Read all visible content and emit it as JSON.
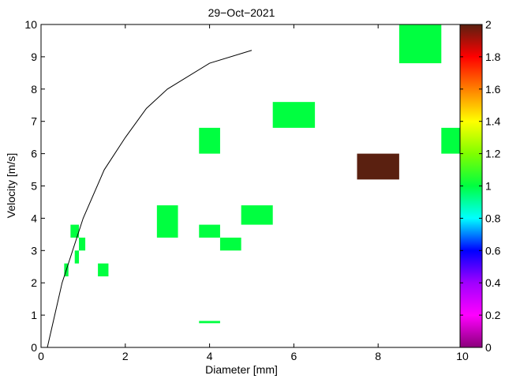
{
  "chart_data": {
    "type": "heatmap",
    "title": "29−Oct−2021",
    "xlabel": "Diameter [mm]",
    "ylabel": "Velocity [m/s]",
    "xlim": [
      0,
      10
    ],
    "ylim": [
      0,
      10
    ],
    "xticks": [
      "0",
      "2",
      "4",
      "6",
      "8",
      "10"
    ],
    "yticks": [
      "0",
      "1",
      "2",
      "3",
      "4",
      "5",
      "6",
      "7",
      "8",
      "9",
      "10"
    ],
    "grid": false,
    "colorbar": {
      "range": [
        0,
        2
      ],
      "ticks": [
        "0",
        "0.2",
        "0.4",
        "0.6",
        "0.8",
        "1",
        "1.2",
        "1.4",
        "1.6",
        "1.8",
        "2"
      ]
    },
    "cells": [
      {
        "x0": 0.55,
        "x1": 0.65,
        "y0": 2.2,
        "y1": 2.6,
        "value": 1
      },
      {
        "x0": 0.7,
        "x1": 0.9,
        "y0": 3.4,
        "y1": 3.8,
        "value": 1
      },
      {
        "x0": 0.8,
        "x1": 0.9,
        "y0": 2.6,
        "y1": 3.0,
        "value": 1
      },
      {
        "x0": 0.9,
        "x1": 1.05,
        "y0": 3.0,
        "y1": 3.4,
        "value": 1
      },
      {
        "x0": 1.35,
        "x1": 1.6,
        "y0": 2.2,
        "y1": 2.6,
        "value": 1
      },
      {
        "x0": 2.75,
        "x1": 3.25,
        "y0": 3.4,
        "y1": 4.4,
        "value": 1
      },
      {
        "x0": 3.75,
        "x1": 4.25,
        "y0": 0.75,
        "y1": 0.82,
        "value": 1
      },
      {
        "x0": 3.75,
        "x1": 4.25,
        "y0": 3.4,
        "y1": 3.8,
        "value": 1
      },
      {
        "x0": 3.75,
        "x1": 4.25,
        "y0": 6.0,
        "y1": 6.8,
        "value": 1
      },
      {
        "x0": 4.25,
        "x1": 4.75,
        "y0": 3.0,
        "y1": 3.4,
        "value": 1
      },
      {
        "x0": 4.75,
        "x1": 5.5,
        "y0": 3.8,
        "y1": 4.4,
        "value": 1
      },
      {
        "x0": 5.5,
        "x1": 6.5,
        "y0": 6.8,
        "y1": 7.6,
        "value": 1
      },
      {
        "x0": 7.5,
        "x1": 8.5,
        "y0": 5.2,
        "y1": 6.0,
        "value": 2
      },
      {
        "x0": 8.5,
        "x1": 9.5,
        "y0": 8.8,
        "y1": 10.4,
        "value": 1
      },
      {
        "x0": 9.5,
        "x1": 10.5,
        "y0": 6.0,
        "y1": 6.8,
        "value": 1
      }
    ],
    "curve": {
      "x": [
        0.15,
        0.5,
        1.0,
        1.5,
        2.0,
        2.5,
        3.0,
        4.0,
        5.0
      ],
      "y": [
        0.0,
        2.0,
        4.0,
        5.5,
        6.5,
        7.4,
        8.0,
        8.8,
        9.2
      ]
    }
  }
}
